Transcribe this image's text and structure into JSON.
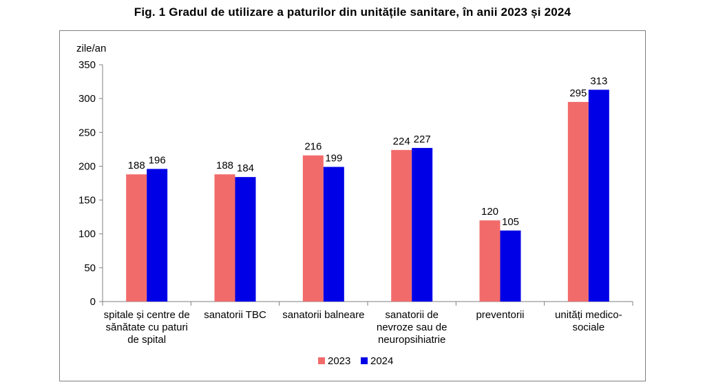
{
  "title": "Fig. 1 Gradul  de utilizare a paturilor din unitățile sanitare, în anii 2023 și 2024",
  "chart_data": {
    "type": "bar",
    "title": "Fig. 1 Gradul  de utilizare a paturilor din unitățile sanitare, în anii 2023 și 2024",
    "ylabel": "zile/an",
    "xlabel": "",
    "ylim": [
      0,
      350
    ],
    "yticks": [
      0,
      50,
      100,
      150,
      200,
      250,
      300,
      350
    ],
    "grid": false,
    "legend_position": "bottom",
    "categories": [
      [
        "spitale și centre de",
        "sănătate  cu paturi",
        "de spital"
      ],
      [
        "sanatorii TBC"
      ],
      [
        "sanatorii balneare"
      ],
      [
        "sanatorii de",
        "nevroze sau de",
        "neuropsihiatrie"
      ],
      [
        "preventorii"
      ],
      [
        "unități medico-",
        "sociale"
      ]
    ],
    "series": [
      {
        "name": "2023",
        "color": "#f26b6b",
        "values": [
          188,
          188,
          216,
          224,
          120,
          295
        ]
      },
      {
        "name": "2024",
        "color": "#0000e6",
        "values": [
          196,
          184,
          199,
          227,
          105,
          313
        ]
      }
    ]
  }
}
